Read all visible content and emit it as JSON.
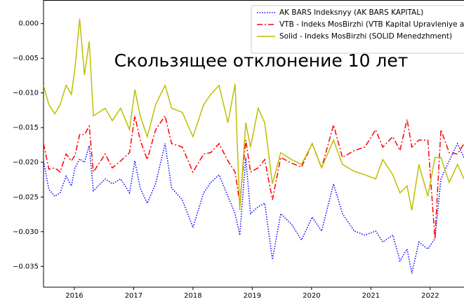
{
  "chart_data": {
    "type": "line",
    "title": "Скользящее отклонение 10 лет",
    "x": [
      2015.48,
      2015.57,
      2015.67,
      2015.76,
      2015.86,
      2015.95,
      2016.01,
      2016.09,
      2016.17,
      2016.25,
      2016.32,
      2016.52,
      2016.64,
      2016.78,
      2016.93,
      2017.02,
      2017.11,
      2017.23,
      2017.37,
      2017.53,
      2017.64,
      2017.82,
      2018.0,
      2018.18,
      2018.3,
      2018.44,
      2018.59,
      2018.71,
      2018.79,
      2018.89,
      2018.97,
      2019.1,
      2019.21,
      2019.34,
      2019.48,
      2019.66,
      2019.83,
      2020.01,
      2020.17,
      2020.37,
      2020.52,
      2020.72,
      2020.9,
      2021.08,
      2021.2,
      2021.37,
      2021.49,
      2021.61,
      2021.69,
      2021.81,
      2021.96,
      2022.08,
      2022.18,
      2022.32,
      2022.46,
      2022.57
    ],
    "series": [
      {
        "name": "AK BARS Indeksnyy (AK BARS KAPITAL)",
        "color": "#0000ff",
        "linestyle": ":",
        "values": [
          -0.0198,
          -0.0239,
          -0.0249,
          -0.0244,
          -0.022,
          -0.0234,
          -0.0208,
          -0.0195,
          -0.02,
          -0.0176,
          -0.0241,
          -0.0224,
          -0.0231,
          -0.0224,
          -0.0244,
          -0.0198,
          -0.0237,
          -0.0259,
          -0.0231,
          -0.0173,
          -0.0237,
          -0.0254,
          -0.0294,
          -0.0244,
          -0.0229,
          -0.0218,
          -0.0249,
          -0.0274,
          -0.0305,
          -0.0193,
          -0.0274,
          -0.0264,
          -0.0259,
          -0.034,
          -0.0274,
          -0.0289,
          -0.0312,
          -0.0279,
          -0.0299,
          -0.0231,
          -0.0274,
          -0.0299,
          -0.0305,
          -0.0299,
          -0.0315,
          -0.0305,
          -0.0342,
          -0.0325,
          -0.036,
          -0.0315,
          -0.0325,
          -0.031,
          -0.0224,
          -0.0198,
          -0.0173,
          -0.0193
        ]
      },
      {
        "name": "VTB - Indeks MosBirzhi (VTB Kapital Upravleniye aktivami)",
        "color": "#ff0000",
        "linestyle": "-.",
        "values": [
          -0.0173,
          -0.021,
          -0.0208,
          -0.0214,
          -0.0188,
          -0.0198,
          -0.019,
          -0.016,
          -0.016,
          -0.0148,
          -0.0214,
          -0.0188,
          -0.0208,
          -0.0198,
          -0.0186,
          -0.0133,
          -0.0168,
          -0.0196,
          -0.0153,
          -0.0133,
          -0.0173,
          -0.0178,
          -0.0214,
          -0.0188,
          -0.0186,
          -0.0173,
          -0.0198,
          -0.0214,
          -0.0259,
          -0.0168,
          -0.0214,
          -0.0208,
          -0.0196,
          -0.0254,
          -0.0193,
          -0.0201,
          -0.0207,
          -0.0173,
          -0.0208,
          -0.0146,
          -0.0193,
          -0.0183,
          -0.0178,
          -0.0153,
          -0.0178,
          -0.0163,
          -0.0183,
          -0.0138,
          -0.0178,
          -0.0168,
          -0.0168,
          -0.031,
          -0.0153,
          -0.0186,
          -0.0188,
          -0.0173
        ]
      },
      {
        "name": "Solid - Indeks MosBirzhi (SOLID Menedzhment)",
        "color": "#bfbf00",
        "linestyle": "-",
        "values": [
          -0.0089,
          -0.0117,
          -0.013,
          -0.0117,
          -0.0089,
          -0.0102,
          -0.0064,
          0.0007,
          -0.0074,
          -0.0026,
          -0.0133,
          -0.0122,
          -0.014,
          -0.0122,
          -0.0153,
          -0.0095,
          -0.0133,
          -0.0163,
          -0.0117,
          -0.0089,
          -0.0122,
          -0.0128,
          -0.0163,
          -0.0117,
          -0.0102,
          -0.0089,
          -0.0143,
          -0.0087,
          -0.0269,
          -0.0143,
          -0.0178,
          -0.0122,
          -0.0143,
          -0.0231,
          -0.0186,
          -0.0196,
          -0.0203,
          -0.0173,
          -0.0208,
          -0.0168,
          -0.0203,
          -0.0213,
          -0.0218,
          -0.0224,
          -0.0196,
          -0.0218,
          -0.0244,
          -0.0234,
          -0.0269,
          -0.0203,
          -0.0249,
          -0.0193,
          -0.0193,
          -0.0229,
          -0.0203,
          -0.0224
        ]
      }
    ],
    "xlim": [
      2015.48,
      2022.57
    ],
    "xticks": [
      2016,
      2017,
      2018,
      2019,
      2020,
      2021,
      2022
    ],
    "ylim": [
      -0.038,
      0.0034
    ],
    "yticks": [
      {
        "value": -0.035,
        "label": "−0.035"
      },
      {
        "value": -0.03,
        "label": "−0.030"
      },
      {
        "value": -0.025,
        "label": "−0.025"
      },
      {
        "value": -0.02,
        "label": "−0.020"
      },
      {
        "value": -0.015,
        "label": "−0.015"
      },
      {
        "value": -0.01,
        "label": "−0.010"
      },
      {
        "value": -0.005,
        "label": "−0.005"
      },
      {
        "value": 0,
        "label": "0.000"
      }
    ],
    "legend": "upper right",
    "grid": false
  }
}
